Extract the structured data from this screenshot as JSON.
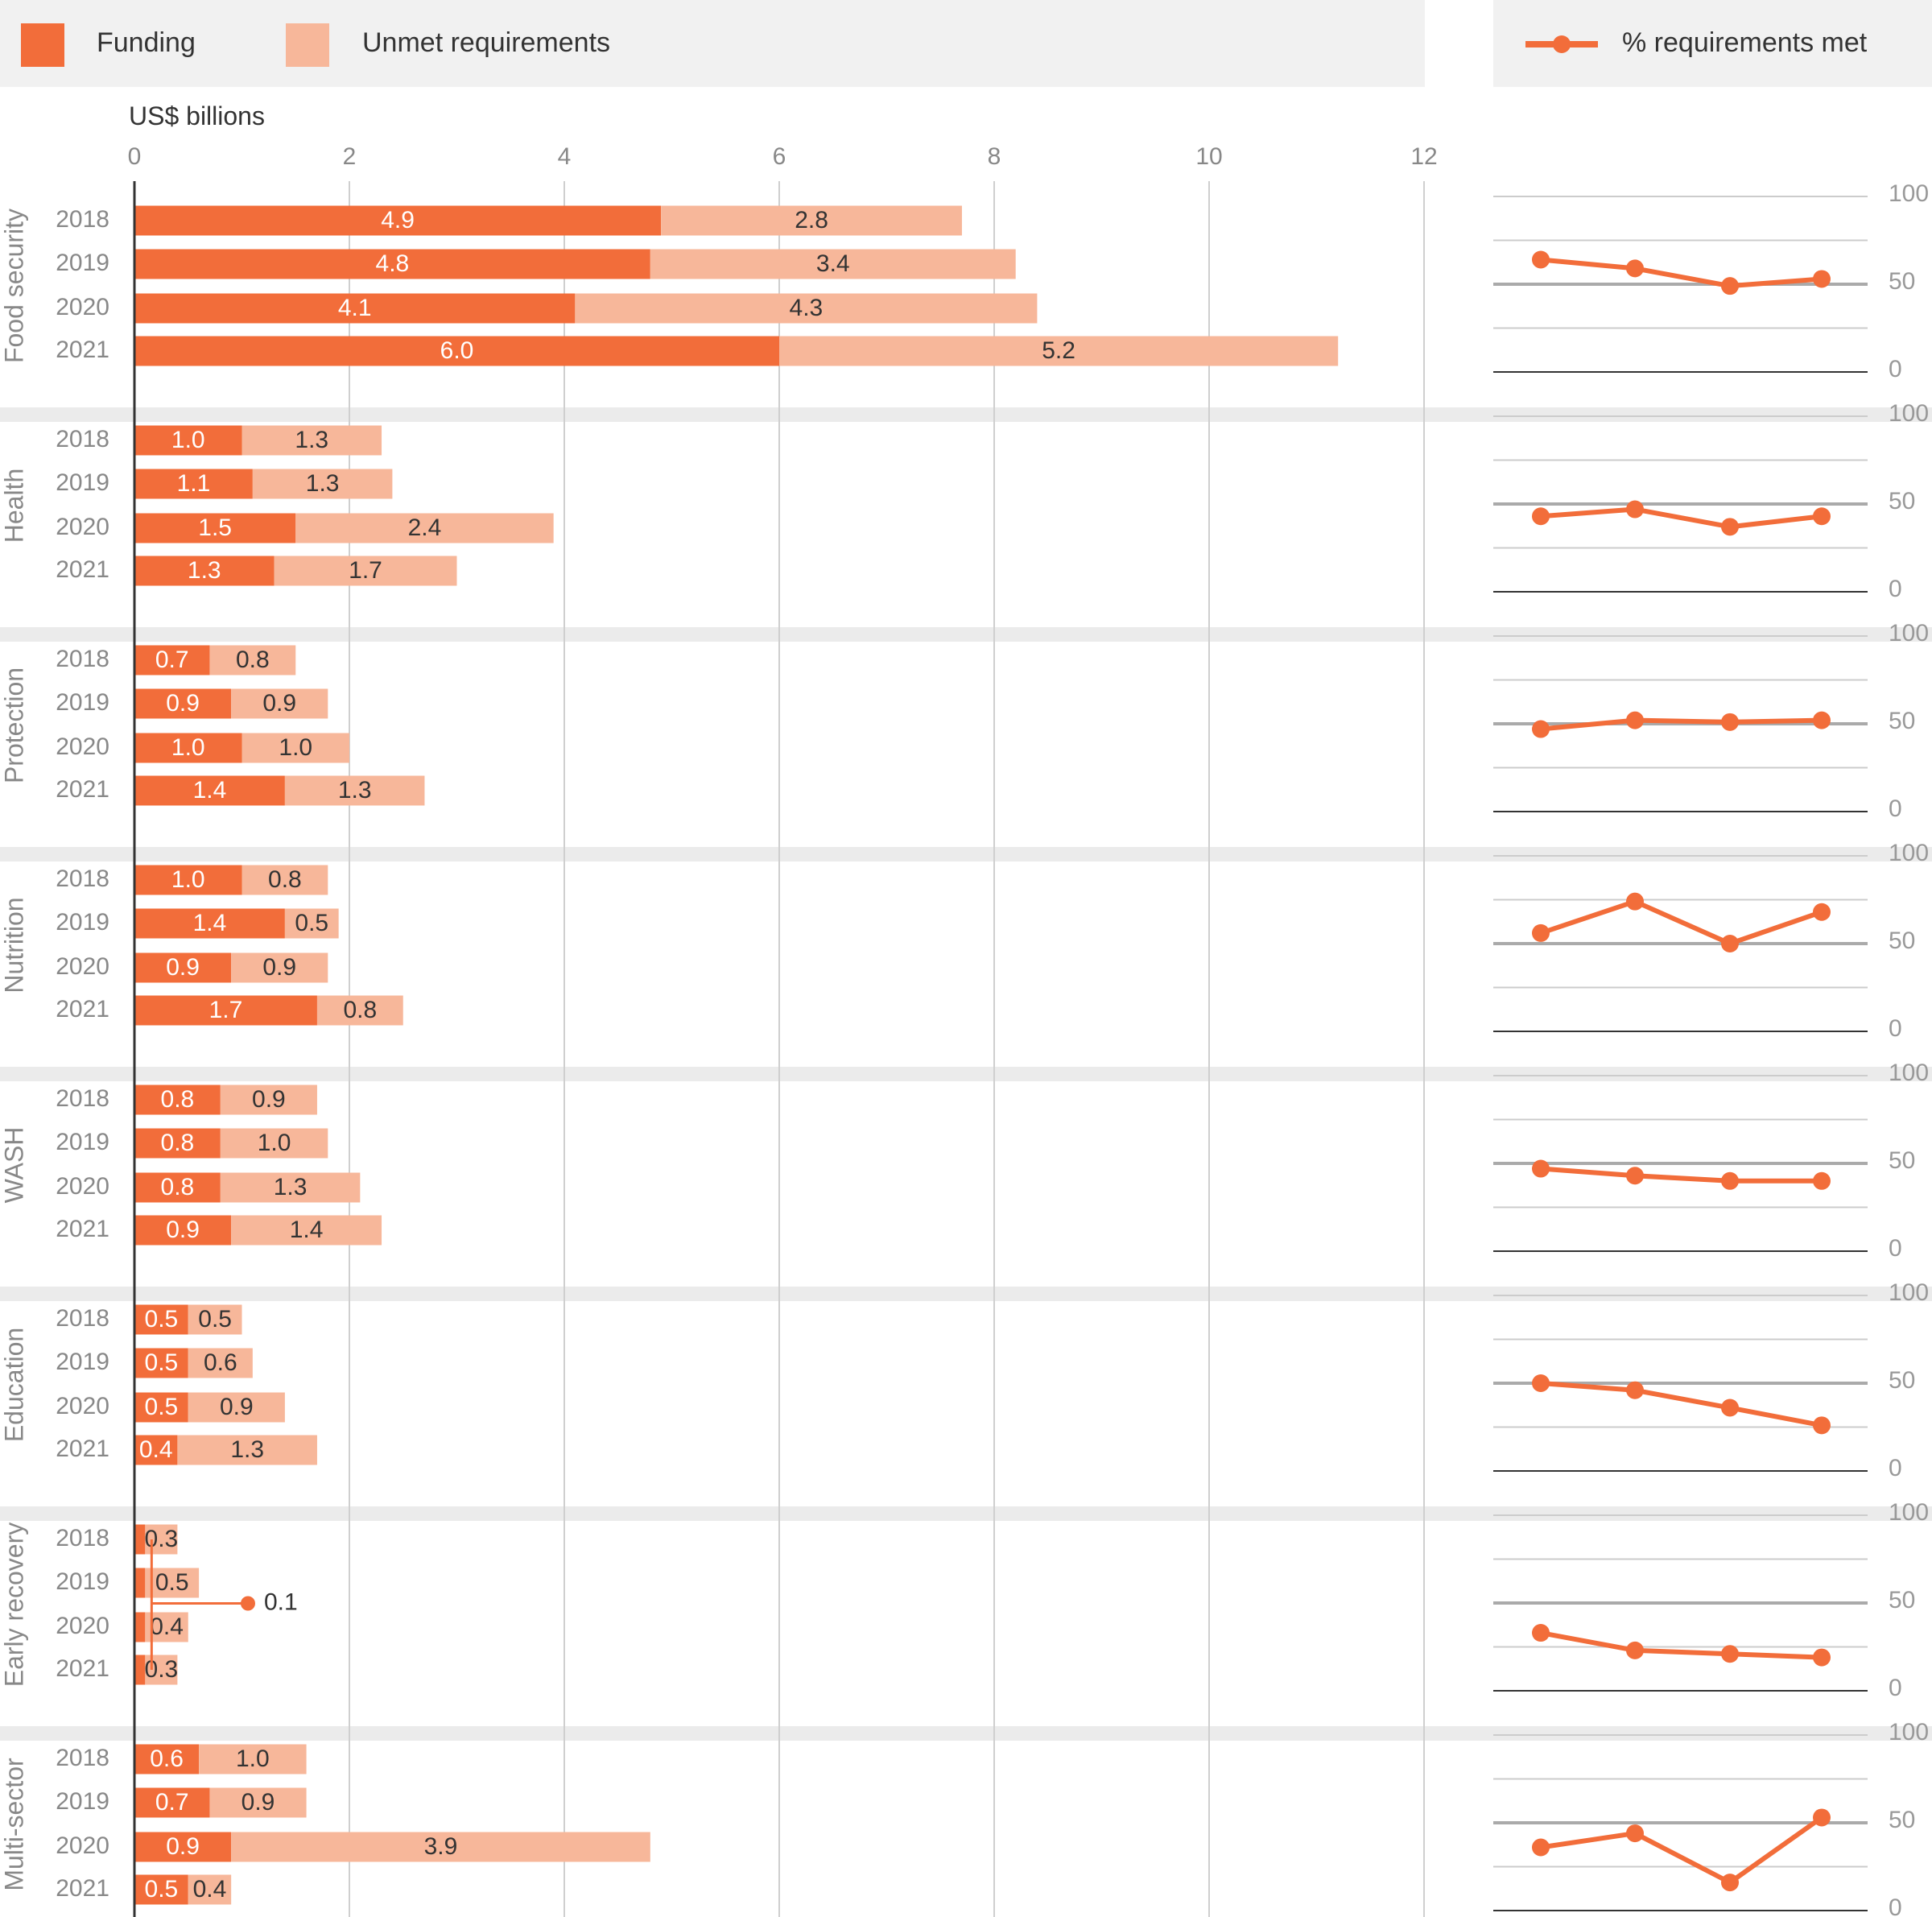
{
  "legend": {
    "funding": "Funding",
    "unmet": "Unmet requirements",
    "pct_met": "% requirements met"
  },
  "colors": {
    "funding": "#F26D3A",
    "unmet": "#F7B79A",
    "line": "#F26D3A",
    "band": "#EBEBEB"
  },
  "chart_data": [
    {
      "type": "bar",
      "stacked": true,
      "orientation": "horizontal",
      "xlabel": "US$ billions",
      "xlim": [
        0,
        12
      ],
      "xticks": [
        0,
        2,
        4,
        6,
        8,
        10,
        12
      ],
      "years": [
        "2018",
        "2019",
        "2020",
        "2021"
      ],
      "groups": [
        {
          "name": "Food security",
          "funding": [
            4.9,
            4.8,
            4.1,
            6.0
          ],
          "unmet": [
            2.8,
            3.4,
            4.3,
            5.2
          ],
          "funding_labels": [
            "4.9",
            "4.8",
            "4.1",
            "6.0"
          ],
          "unmet_labels": [
            "2.8",
            "3.4",
            "4.3",
            "5.2"
          ]
        },
        {
          "name": "Health",
          "funding": [
            1.0,
            1.1,
            1.5,
            1.3
          ],
          "unmet": [
            1.3,
            1.3,
            2.4,
            1.7
          ],
          "funding_labels": [
            "1.0",
            "1.1",
            "1.5",
            "1.3"
          ],
          "unmet_labels": [
            "1.3",
            "1.3",
            "2.4",
            "1.7"
          ]
        },
        {
          "name": "Protection",
          "funding": [
            0.7,
            0.9,
            1.0,
            1.4
          ],
          "unmet": [
            0.8,
            0.9,
            1.0,
            1.3
          ],
          "funding_labels": [
            "0.7",
            "0.9",
            "1.0",
            "1.4"
          ],
          "unmet_labels": [
            "0.8",
            "0.9",
            "1.0",
            "1.3"
          ]
        },
        {
          "name": "Nutrition",
          "funding": [
            1.0,
            1.4,
            0.9,
            1.7
          ],
          "unmet": [
            0.8,
            0.5,
            0.9,
            0.8
          ],
          "funding_labels": [
            "1.0",
            "1.4",
            "0.9",
            "1.7"
          ],
          "unmet_labels": [
            "0.8",
            "0.5",
            "0.9",
            "0.8"
          ]
        },
        {
          "name": "WASH",
          "funding": [
            0.8,
            0.8,
            0.8,
            0.9
          ],
          "unmet": [
            0.9,
            1.0,
            1.3,
            1.4
          ],
          "funding_labels": [
            "0.8",
            "0.8",
            "0.8",
            "0.9"
          ],
          "unmet_labels": [
            "0.9",
            "1.0",
            "1.3",
            "1.4"
          ]
        },
        {
          "name": "Education",
          "funding": [
            0.5,
            0.5,
            0.5,
            0.4
          ],
          "unmet": [
            0.5,
            0.6,
            0.9,
            1.3
          ],
          "funding_labels": [
            "0.5",
            "0.5",
            "0.5",
            "0.4"
          ],
          "unmet_labels": [
            "0.5",
            "0.6",
            "0.9",
            "1.3"
          ]
        },
        {
          "name": "Early recovery",
          "funding": [
            0.1,
            0.1,
            0.1,
            0.1
          ],
          "unmet": [
            0.3,
            0.5,
            0.4,
            0.3
          ],
          "funding_labels": [
            "",
            "",
            "",
            ""
          ],
          "unmet_labels": [
            "0.3",
            "0.5",
            "0.4",
            "0.3"
          ],
          "callout": "0.1"
        },
        {
          "name": "Multi-sector",
          "funding": [
            0.6,
            0.7,
            0.9,
            0.5
          ],
          "unmet": [
            1.0,
            0.9,
            3.9,
            0.4
          ],
          "funding_labels": [
            "0.6",
            "0.7",
            "0.9",
            "0.5"
          ],
          "unmet_labels": [
            "1.0",
            "0.9",
            "3.9",
            "0.4"
          ]
        }
      ]
    },
    {
      "type": "line",
      "series_name": "% requirements met",
      "ylim": [
        0,
        100
      ],
      "yticks": [
        0,
        50,
        100
      ],
      "x": [
        "2018",
        "2019",
        "2020",
        "2021"
      ],
      "series": [
        {
          "group": "Food security",
          "values": [
            64,
            59,
            49,
            53
          ]
        },
        {
          "group": "Health",
          "values": [
            43,
            47,
            37,
            43
          ]
        },
        {
          "group": "Protection",
          "values": [
            47,
            52,
            51,
            52
          ]
        },
        {
          "group": "Nutrition",
          "values": [
            56,
            74,
            50,
            68
          ]
        },
        {
          "group": "WASH",
          "values": [
            47,
            43,
            40,
            40
          ]
        },
        {
          "group": "Education",
          "values": [
            50,
            46,
            36,
            26
          ]
        },
        {
          "group": "Early recovery",
          "values": [
            33,
            23,
            21,
            19
          ]
        },
        {
          "group": "Multi-sector",
          "values": [
            36,
            44,
            16,
            53
          ]
        }
      ]
    }
  ]
}
